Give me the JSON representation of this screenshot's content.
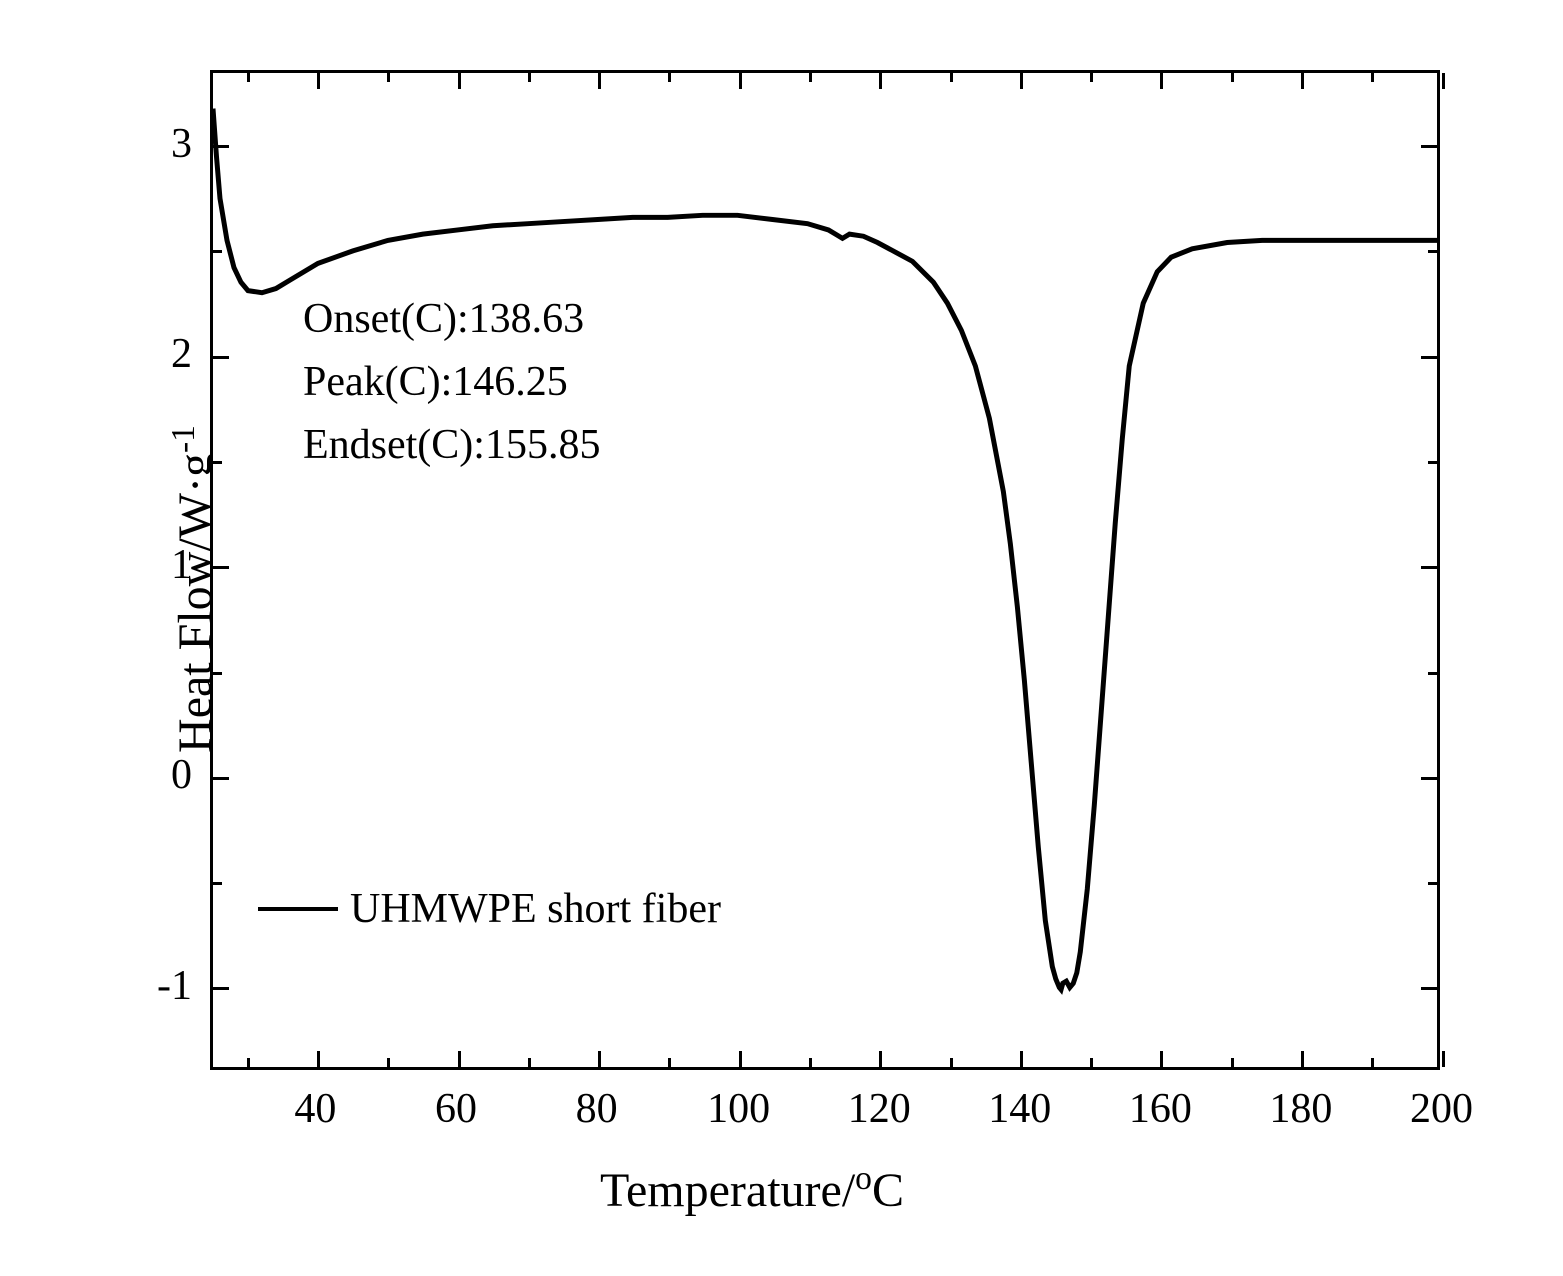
{
  "chart": {
    "type": "line",
    "xlabel_prefix": "Temperature/",
    "xlabel_degree": "o",
    "xlabel_suffix": "C",
    "ylabel_prefix": "Heat Flow/W·g",
    "ylabel_super": "-1",
    "xlim": [
      25,
      200
    ],
    "ylim": [
      -1.4,
      3.35
    ],
    "x_major_ticks": [
      40,
      60,
      80,
      100,
      120,
      140,
      160,
      180,
      200
    ],
    "x_minor_ticks": [
      30,
      50,
      70,
      90,
      110,
      130,
      150,
      170,
      190
    ],
    "y_major_ticks": [
      -1,
      0,
      1,
      2,
      3
    ],
    "y_minor_ticks": [
      -0.5,
      0.5,
      1.5,
      2.5
    ],
    "major_tick_length": 16,
    "minor_tick_length": 9,
    "tick_width": 3,
    "line_color": "#000000",
    "line_width": 5,
    "background_color": "#ffffff",
    "border_width": 3,
    "label_fontsize": 48,
    "tick_fontsize": 42,
    "annotation_fontsize": 42,
    "annotations": {
      "onset": "Onset(C):138.63",
      "peak": "Peak(C):146.25",
      "endset": "Endset(C):155.85"
    },
    "legend": {
      "label": "UHMWPE short fiber",
      "line_width": 4,
      "line_length": 80
    },
    "data_points": [
      {
        "x": 25.0,
        "y": 3.18
      },
      {
        "x": 25.5,
        "y": 2.95
      },
      {
        "x": 26.0,
        "y": 2.75
      },
      {
        "x": 27.0,
        "y": 2.55
      },
      {
        "x": 28.0,
        "y": 2.42
      },
      {
        "x": 29.0,
        "y": 2.35
      },
      {
        "x": 30.0,
        "y": 2.31
      },
      {
        "x": 32.0,
        "y": 2.3
      },
      {
        "x": 34.0,
        "y": 2.32
      },
      {
        "x": 36.0,
        "y": 2.36
      },
      {
        "x": 38.0,
        "y": 2.4
      },
      {
        "x": 40.0,
        "y": 2.44
      },
      {
        "x": 45.0,
        "y": 2.5
      },
      {
        "x": 50.0,
        "y": 2.55
      },
      {
        "x": 55.0,
        "y": 2.58
      },
      {
        "x": 60.0,
        "y": 2.6
      },
      {
        "x": 65.0,
        "y": 2.62
      },
      {
        "x": 70.0,
        "y": 2.63
      },
      {
        "x": 75.0,
        "y": 2.64
      },
      {
        "x": 80.0,
        "y": 2.65
      },
      {
        "x": 85.0,
        "y": 2.66
      },
      {
        "x": 90.0,
        "y": 2.66
      },
      {
        "x": 95.0,
        "y": 2.67
      },
      {
        "x": 100.0,
        "y": 2.67
      },
      {
        "x": 105.0,
        "y": 2.65
      },
      {
        "x": 110.0,
        "y": 2.63
      },
      {
        "x": 113.0,
        "y": 2.6
      },
      {
        "x": 114.0,
        "y": 2.58
      },
      {
        "x": 115.0,
        "y": 2.56
      },
      {
        "x": 116.0,
        "y": 2.58
      },
      {
        "x": 118.0,
        "y": 2.57
      },
      {
        "x": 120.0,
        "y": 2.54
      },
      {
        "x": 125.0,
        "y": 2.45
      },
      {
        "x": 128.0,
        "y": 2.35
      },
      {
        "x": 130.0,
        "y": 2.25
      },
      {
        "x": 132.0,
        "y": 2.12
      },
      {
        "x": 134.0,
        "y": 1.95
      },
      {
        "x": 136.0,
        "y": 1.7
      },
      {
        "x": 138.0,
        "y": 1.35
      },
      {
        "x": 139.0,
        "y": 1.1
      },
      {
        "x": 140.0,
        "y": 0.8
      },
      {
        "x": 141.0,
        "y": 0.45
      },
      {
        "x": 142.0,
        "y": 0.05
      },
      {
        "x": 143.0,
        "y": -0.35
      },
      {
        "x": 144.0,
        "y": -0.7
      },
      {
        "x": 145.0,
        "y": -0.92
      },
      {
        "x": 145.5,
        "y": -0.98
      },
      {
        "x": 146.0,
        "y": -1.02
      },
      {
        "x": 146.25,
        "y": -1.03
      },
      {
        "x": 146.5,
        "y": -1.0
      },
      {
        "x": 147.0,
        "y": -0.99
      },
      {
        "x": 147.5,
        "y": -1.02
      },
      {
        "x": 148.0,
        "y": -1.0
      },
      {
        "x": 148.5,
        "y": -0.95
      },
      {
        "x": 149.0,
        "y": -0.85
      },
      {
        "x": 150.0,
        "y": -0.55
      },
      {
        "x": 151.0,
        "y": -0.15
      },
      {
        "x": 152.0,
        "y": 0.3
      },
      {
        "x": 153.0,
        "y": 0.75
      },
      {
        "x": 154.0,
        "y": 1.2
      },
      {
        "x": 155.0,
        "y": 1.6
      },
      {
        "x": 156.0,
        "y": 1.95
      },
      {
        "x": 158.0,
        "y": 2.25
      },
      {
        "x": 160.0,
        "y": 2.4
      },
      {
        "x": 162.0,
        "y": 2.47
      },
      {
        "x": 165.0,
        "y": 2.51
      },
      {
        "x": 170.0,
        "y": 2.54
      },
      {
        "x": 175.0,
        "y": 2.55
      },
      {
        "x": 180.0,
        "y": 2.55
      },
      {
        "x": 185.0,
        "y": 2.55
      },
      {
        "x": 190.0,
        "y": 2.55
      },
      {
        "x": 195.0,
        "y": 2.55
      },
      {
        "x": 200.0,
        "y": 2.55
      }
    ]
  }
}
